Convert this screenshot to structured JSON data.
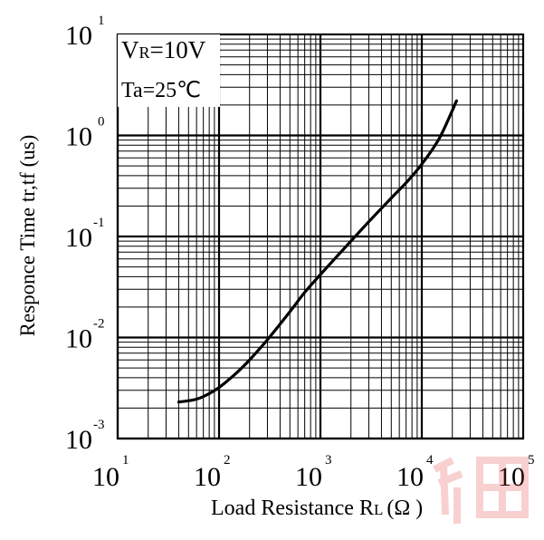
{
  "chart_data": {
    "type": "line",
    "xlabel": "Load Resistance R",
    "xlabel_subscript": "L",
    "xlabel_unit": "(Ω )",
    "ylabel": "Responce Time tr,tf (us)",
    "x_scale": "log",
    "y_scale": "log",
    "xlim": [
      10,
      100000
    ],
    "ylim": [
      0.001,
      10
    ],
    "grid": true,
    "x_ticks": [
      {
        "base": "10",
        "exp": "1"
      },
      {
        "base": "10",
        "exp": "2"
      },
      {
        "base": "10",
        "exp": "3"
      },
      {
        "base": "10",
        "exp": "4"
      },
      {
        "base": "10",
        "exp": "5"
      }
    ],
    "y_ticks": [
      {
        "base": "10",
        "exp": "1"
      },
      {
        "base": "10",
        "exp": "0"
      },
      {
        "base": "10",
        "exp": "-1"
      },
      {
        "base": "10",
        "exp": "-2"
      },
      {
        "base": "10",
        "exp": "-3"
      }
    ],
    "conditions": {
      "line1_main": "V",
      "line1_sub": "R",
      "line1_rest": "=10V",
      "line2": "Ta=25℃"
    },
    "series": [
      {
        "x": [
          40,
          55,
          70,
          100,
          150,
          200,
          300,
          500,
          700,
          1000,
          2000,
          3000,
          5000,
          7000,
          10000,
          15000,
          22000
        ],
        "values": [
          0.0023,
          0.0024,
          0.0026,
          0.0032,
          0.0045,
          0.006,
          0.0095,
          0.018,
          0.028,
          0.042,
          0.09,
          0.14,
          0.24,
          0.34,
          0.52,
          0.95,
          2.2
        ]
      }
    ]
  }
}
